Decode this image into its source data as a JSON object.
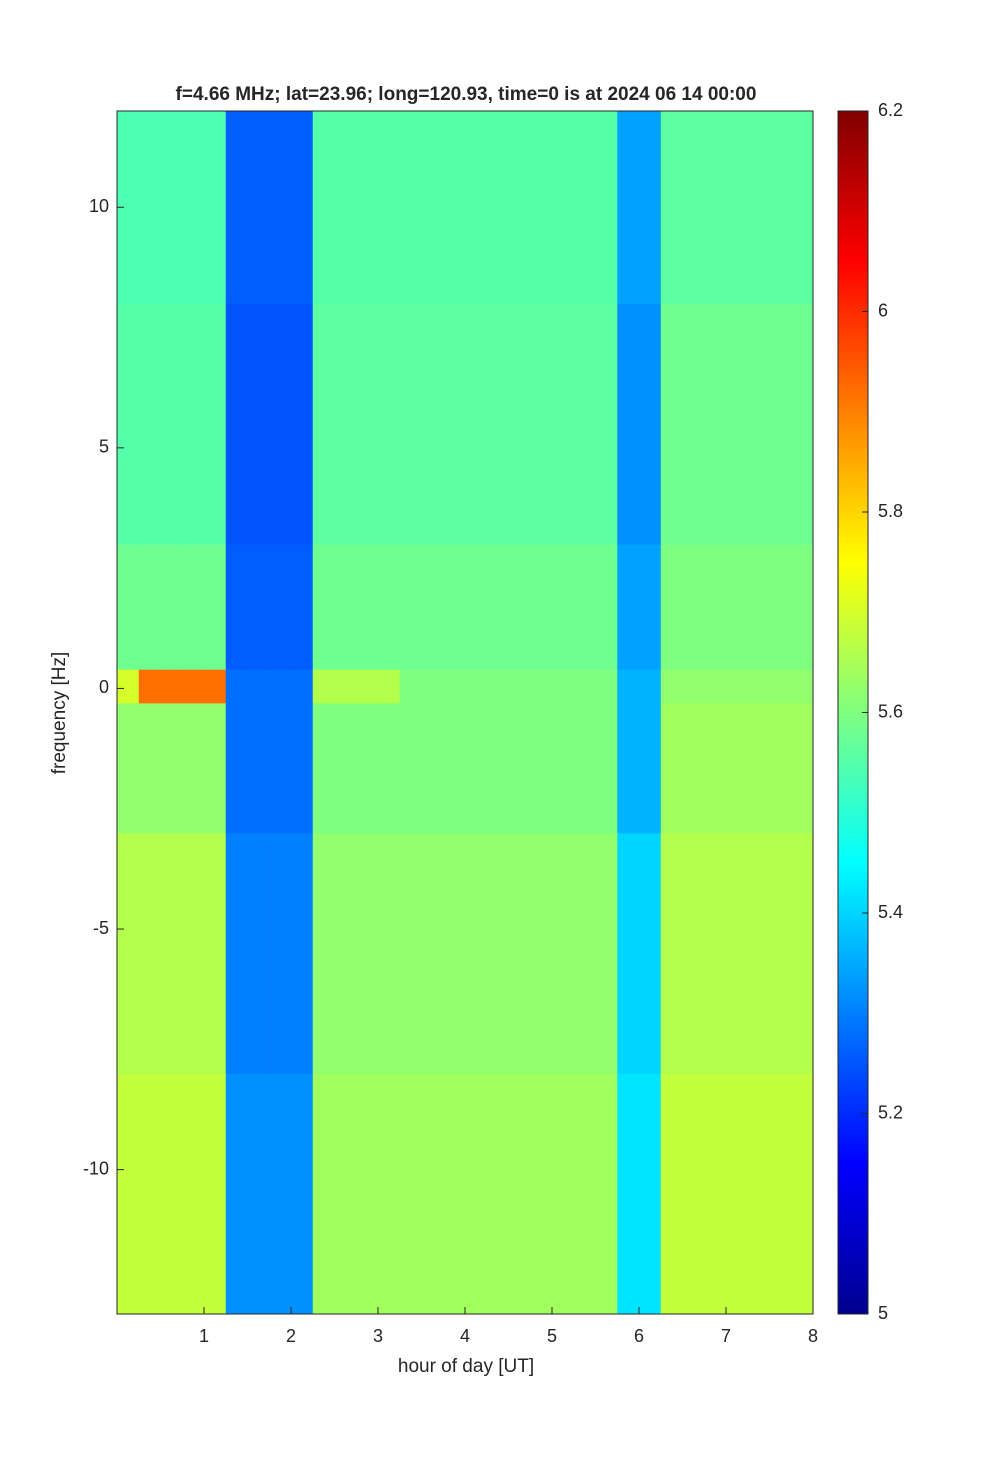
{
  "chart_data": {
    "type": "heatmap",
    "title": "f=4.66 MHz;  lat=23.96; long=120.93, time=0 is at 2024 06 14 00:00",
    "x_label": "hour of day [UT]",
    "y_label": "frequency [Hz]",
    "xlim": [
      0,
      8
    ],
    "ylim": [
      -13,
      12
    ],
    "xticks": [
      1,
      2,
      3,
      4,
      5,
      6,
      7,
      8
    ],
    "yticks": [
      -10,
      -5,
      0,
      5,
      10
    ],
    "colormap": "jet",
    "clim": [
      5,
      6.2
    ],
    "cticks": [
      5,
      5.2,
      5.4,
      5.6,
      5.8,
      6,
      6.2
    ],
    "x_edges": [
      0,
      0.25,
      0.5,
      0.75,
      1,
      1.25,
      1.5,
      1.75,
      2,
      2.25,
      2.5,
      2.75,
      3,
      3.25,
      3.5,
      3.75,
      4,
      4.25,
      4.5,
      4.75,
      5,
      5.25,
      5.5,
      5.75,
      6,
      6.25,
      6.5,
      6.75,
      7,
      7.25,
      7.5,
      7.75,
      8
    ],
    "y_edges": [
      -13,
      -8,
      -3,
      -0.3,
      0.4,
      3,
      8,
      12
    ],
    "z": [
      [
        5.68,
        5.68,
        5.68,
        5.68,
        5.68,
        5.32,
        5.32,
        5.32,
        5.32,
        5.64,
        5.64,
        5.64,
        5.64,
        5.64,
        5.64,
        5.64,
        5.64,
        5.64,
        5.64,
        5.64,
        5.64,
        5.64,
        5.64,
        5.42,
        5.42,
        5.68,
        5.68,
        5.68,
        5.68,
        5.68,
        5.68,
        5.68
      ],
      [
        5.66,
        5.66,
        5.66,
        5.66,
        5.66,
        5.3,
        5.3,
        5.3,
        5.3,
        5.62,
        5.62,
        5.62,
        5.62,
        5.62,
        5.62,
        5.62,
        5.62,
        5.62,
        5.62,
        5.62,
        5.62,
        5.62,
        5.62,
        5.4,
        5.4,
        5.66,
        5.66,
        5.66,
        5.66,
        5.66,
        5.66,
        5.66
      ],
      [
        5.62,
        5.62,
        5.62,
        5.62,
        5.62,
        5.28,
        5.28,
        5.28,
        5.28,
        5.6,
        5.6,
        5.6,
        5.6,
        5.6,
        5.6,
        5.6,
        5.6,
        5.6,
        5.6,
        5.6,
        5.6,
        5.6,
        5.6,
        5.36,
        5.36,
        5.64,
        5.64,
        5.64,
        5.64,
        5.64,
        5.64,
        5.64
      ],
      [
        5.7,
        5.92,
        5.92,
        5.92,
        5.92,
        5.28,
        5.28,
        5.28,
        5.28,
        5.66,
        5.66,
        5.66,
        5.66,
        5.6,
        5.6,
        5.6,
        5.6,
        5.6,
        5.6,
        5.6,
        5.6,
        5.6,
        5.6,
        5.36,
        5.36,
        5.62,
        5.62,
        5.62,
        5.62,
        5.62,
        5.62,
        5.62
      ],
      [
        5.58,
        5.58,
        5.58,
        5.58,
        5.58,
        5.26,
        5.26,
        5.26,
        5.26,
        5.58,
        5.58,
        5.58,
        5.58,
        5.58,
        5.58,
        5.58,
        5.58,
        5.58,
        5.58,
        5.58,
        5.58,
        5.58,
        5.58,
        5.34,
        5.34,
        5.6,
        5.6,
        5.6,
        5.6,
        5.6,
        5.6,
        5.6
      ],
      [
        5.55,
        5.55,
        5.55,
        5.55,
        5.55,
        5.25,
        5.25,
        5.25,
        5.25,
        5.56,
        5.56,
        5.56,
        5.56,
        5.56,
        5.56,
        5.56,
        5.56,
        5.56,
        5.56,
        5.56,
        5.56,
        5.56,
        5.56,
        5.32,
        5.32,
        5.58,
        5.58,
        5.58,
        5.58,
        5.58,
        5.58,
        5.58
      ],
      [
        5.54,
        5.54,
        5.54,
        5.54,
        5.54,
        5.26,
        5.26,
        5.26,
        5.26,
        5.55,
        5.55,
        5.55,
        5.55,
        5.55,
        5.55,
        5.55,
        5.55,
        5.55,
        5.55,
        5.55,
        5.55,
        5.55,
        5.55,
        5.34,
        5.34,
        5.56,
        5.56,
        5.56,
        5.56,
        5.56,
        5.56,
        5.56
      ]
    ]
  }
}
